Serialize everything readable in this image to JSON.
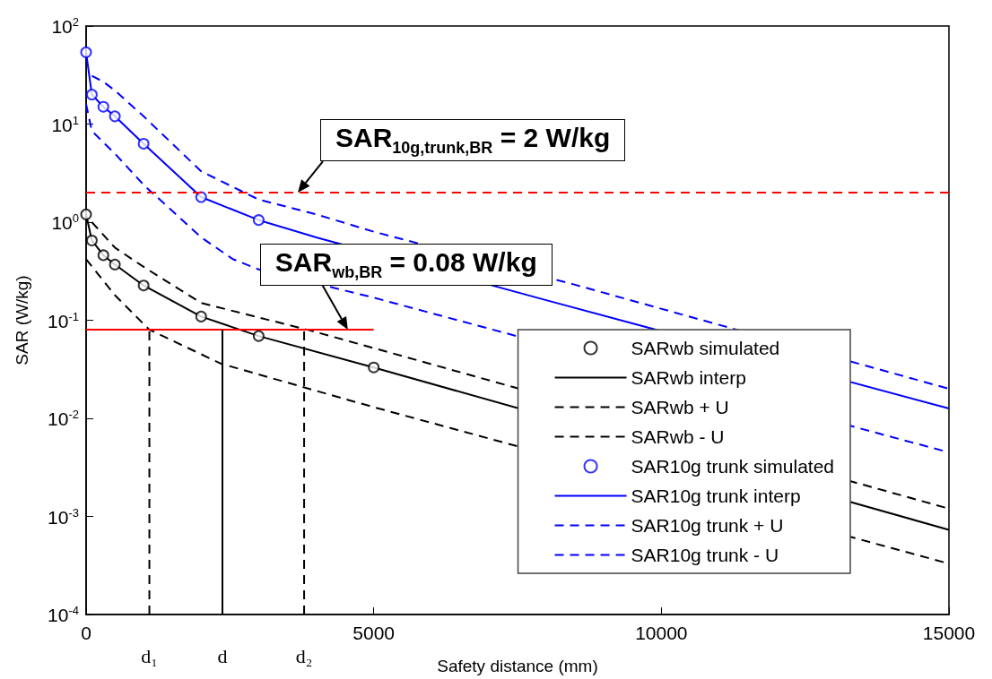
{
  "chart_data": {
    "type": "line",
    "xlabel": "Safety distance (mm)",
    "ylabel": "SAR (W/kg)",
    "log": "y",
    "grid": false,
    "legend": "bottom right",
    "xlim": [
      0,
      15000
    ],
    "xticks": [
      0,
      5000,
      10000,
      15000
    ],
    "ylim": [
      0.0001,
      100
    ],
    "yticks": [
      {
        "value": 0.0001,
        "label": "10$^{-4}$"
      },
      {
        "value": 0.001,
        "label": "10$^{-3}$"
      },
      {
        "value": 0.01,
        "label": "10$^{-2}$"
      },
      {
        "value": 0.1,
        "label": "10$^{-1}$"
      },
      {
        "value": 1,
        "label": "10$^{0}$"
      },
      {
        "value": 10,
        "label": "10$^{1}$"
      },
      {
        "value": 100,
        "label": "10$^{2}$"
      }
    ],
    "ref_lines": [
      {
        "axis": "y",
        "value": 2,
        "color": "#ff0000",
        "line_style": "dashed"
      }
    ],
    "annotations": [
      {
        "text": "SAR$_{10g,trunk,BR}$ = 2 W/kg",
        "x": 3680,
        "y": 2
      },
      {
        "text": "SAR$_{wb,BR}$ = 0.08 W/kg",
        "x": 4550,
        "y": 0.08
      },
      {
        "text": "d₁",
        "x": 1100,
        "y": 0.0001
      },
      {
        "text": "d",
        "x": 2370,
        "y": 0.0001
      },
      {
        "text": "d₂",
        "x": 3790,
        "y": 0.0001
      }
    ],
    "series": [
      {
        "name": "SARwb simulated",
        "type": "scatter",
        "marker": "circle",
        "color": "#000000",
        "x": [
          0,
          100,
          300,
          500,
          1000,
          2000,
          3000,
          5000
        ],
        "values": [
          1.2,
          0.65,
          0.46,
          0.37,
          0.226,
          0.109,
          0.069,
          0.033
        ]
      },
      {
        "name": "SARwb interp",
        "type": "line",
        "line_style": "solid",
        "color": "#000000",
        "x": [
          0,
          100,
          300,
          500,
          1000,
          2000,
          3000,
          5000,
          15000
        ],
        "values": [
          1.2,
          0.65,
          0.46,
          0.37,
          0.226,
          0.109,
          0.069,
          0.033,
          0.00073
        ]
      },
      {
        "name": "SARwb + U",
        "type": "line",
        "line_style": "dashed",
        "color": "#000000",
        "x": [
          100,
          500,
          1000,
          2000,
          3850,
          5000,
          15000
        ],
        "values": [
          1.0,
          0.55,
          0.35,
          0.15,
          0.08,
          0.052,
          0.0012
        ]
      },
      {
        "name": "SARwb - U",
        "type": "line",
        "line_style": "dashed",
        "color": "#000000",
        "x": [
          0,
          500,
          1100,
          2350,
          3750,
          5000,
          15000
        ],
        "values": [
          0.42,
          0.18,
          0.08,
          0.036,
          0.021,
          0.013,
          0.00033
        ]
      },
      {
        "name": "SAR10g trunk simulated",
        "type": "scatter",
        "marker": "circle",
        "color": "#0000ff",
        "x": [
          0,
          100,
          300,
          500,
          1000,
          2000,
          3000
        ],
        "values": [
          54,
          20,
          15,
          12,
          6.3,
          1.8,
          1.05
        ]
      },
      {
        "name": "SAR10g trunk interp",
        "type": "line",
        "line_style": "solid",
        "color": "#0000ff",
        "x": [
          0,
          100,
          300,
          500,
          1000,
          2000,
          3000,
          4000,
          8000,
          15000
        ],
        "values": [
          54,
          20,
          15,
          12,
          6.3,
          1.8,
          1.05,
          0.7,
          0.16,
          0.0126
        ]
      },
      {
        "name": "SAR10g trunk + U",
        "type": "line",
        "line_style": "dashed",
        "color": "#0000ff",
        "x": [
          100,
          300,
          500,
          1000,
          2000,
          3000,
          4000,
          5000,
          8500,
          15000
        ],
        "values": [
          31,
          27,
          22,
          12,
          3.3,
          1.7,
          1.2,
          0.8,
          0.23,
          0.02
        ]
      },
      {
        "name": "SAR10g trunk - U",
        "type": "line",
        "line_style": "dashed",
        "color": "#0000ff",
        "x": [
          0,
          100,
          500,
          1000,
          2000,
          2550,
          3000,
          5000,
          15000
        ],
        "values": [
          16,
          8.5,
          5,
          2.4,
          0.7,
          0.42,
          0.33,
          0.17,
          0.0045
        ]
      },
      {
        "type": "line",
        "line_style": "solid",
        "color": "#ff0000",
        "x": [
          0,
          5000
        ],
        "values": [
          0.08,
          0.08
        ]
      },
      {
        "type": "line",
        "line_style": "dashed",
        "color": "#000000",
        "x": [
          1100,
          1100
        ],
        "values": [
          0.0001,
          0.08
        ]
      },
      {
        "type": "line",
        "line_style": "solid",
        "color": "#000000",
        "x": [
          2370,
          2370
        ],
        "values": [
          0.0001,
          0.08
        ]
      },
      {
        "type": "line",
        "line_style": "dashed",
        "color": "#000000",
        "x": [
          3790,
          3790
        ],
        "values": [
          0.0001,
          0.08
        ]
      }
    ]
  }
}
